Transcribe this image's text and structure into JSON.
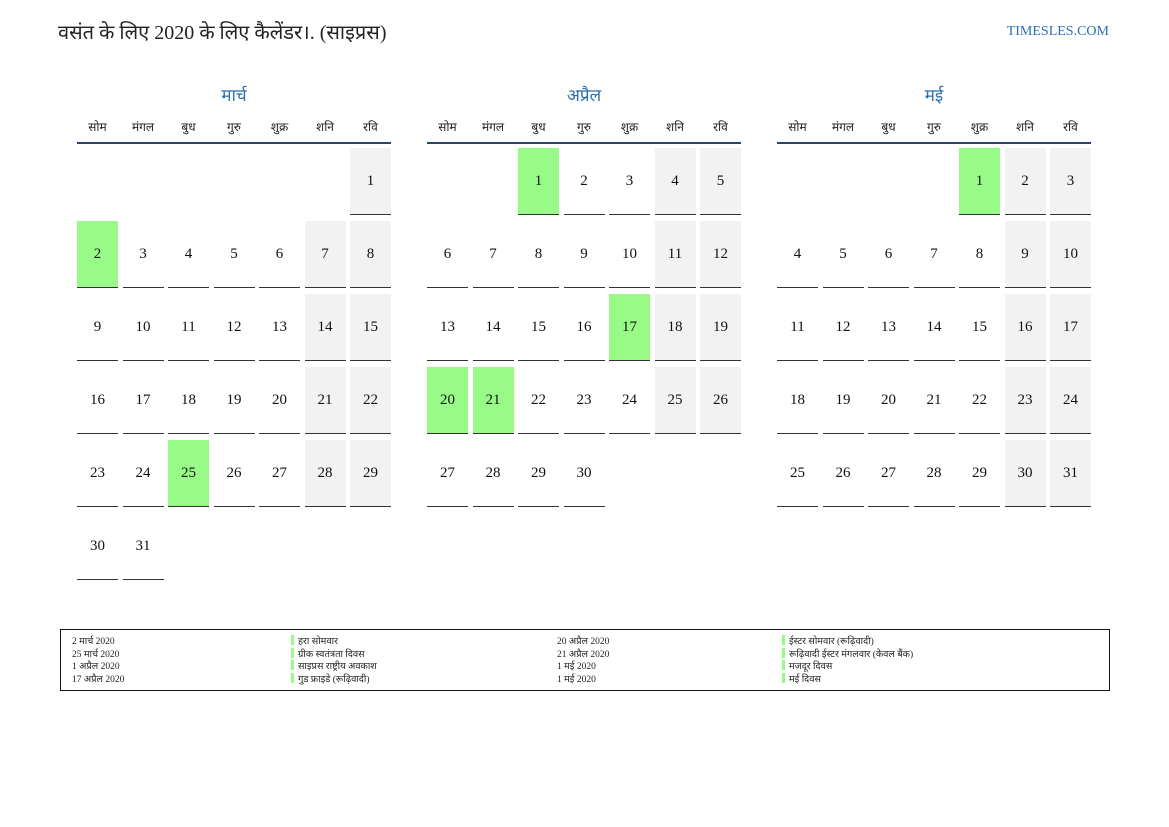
{
  "header": {
    "title": "वसंत के लिए 2020 के लिए कैलेंडर।. (साइप्रस)",
    "site": "TIMESLES.COM"
  },
  "weekdays": [
    "सोम",
    "मंगल",
    "बुध",
    "गुरु",
    "शुक्र",
    "शनि",
    "रवि"
  ],
  "months": [
    {
      "name": "मार्च",
      "highlighted": [
        2,
        25
      ],
      "weeks": [
        [
          null,
          null,
          null,
          null,
          null,
          null,
          1
        ],
        [
          2,
          3,
          4,
          5,
          6,
          7,
          8
        ],
        [
          9,
          10,
          11,
          12,
          13,
          14,
          15
        ],
        [
          16,
          17,
          18,
          19,
          20,
          21,
          22
        ],
        [
          23,
          24,
          25,
          26,
          27,
          28,
          29
        ],
        [
          30,
          31,
          null,
          null,
          null,
          null,
          null
        ]
      ]
    },
    {
      "name": "अप्रैल",
      "highlighted": [
        1,
        17,
        20,
        21
      ],
      "weeks": [
        [
          null,
          null,
          1,
          2,
          3,
          4,
          5
        ],
        [
          6,
          7,
          8,
          9,
          10,
          11,
          12
        ],
        [
          13,
          14,
          15,
          16,
          17,
          18,
          19
        ],
        [
          20,
          21,
          22,
          23,
          24,
          25,
          26
        ],
        [
          27,
          28,
          29,
          30,
          null,
          null,
          null
        ]
      ]
    },
    {
      "name": "मई",
      "highlighted": [
        1
      ],
      "weeks": [
        [
          null,
          null,
          null,
          null,
          1,
          2,
          3
        ],
        [
          4,
          5,
          6,
          7,
          8,
          9,
          10
        ],
        [
          11,
          12,
          13,
          14,
          15,
          16,
          17
        ],
        [
          18,
          19,
          20,
          21,
          22,
          23,
          24
        ],
        [
          25,
          26,
          27,
          28,
          29,
          30,
          31
        ]
      ]
    }
  ],
  "legend": {
    "items": [
      {
        "date": "2 मार्च 2020",
        "name": "हरा सोमवार"
      },
      {
        "date": "25 मार्च 2020",
        "name": "ग्रीक स्वतंत्रता दिवस"
      },
      {
        "date": "1 अप्रैल 2020",
        "name": "साइप्रस राष्ट्रीय अवकाश"
      },
      {
        "date": "17 अप्रैल 2020",
        "name": "गुड फ्राइडे (रूढ़िवादी)"
      },
      {
        "date": "20 अप्रैल 2020",
        "name": "ईस्टर सोमवार (रूढ़िवादी)"
      },
      {
        "date": "21 अप्रैल 2020",
        "name": "रूढ़िवादी ईस्टर मंगलवार (केवल बैंक)"
      },
      {
        "date": "1 मई 2020",
        "name": "मजदूर दिवस"
      },
      {
        "date": "1 मई 2020",
        "name": "मई दिवस"
      }
    ]
  }
}
